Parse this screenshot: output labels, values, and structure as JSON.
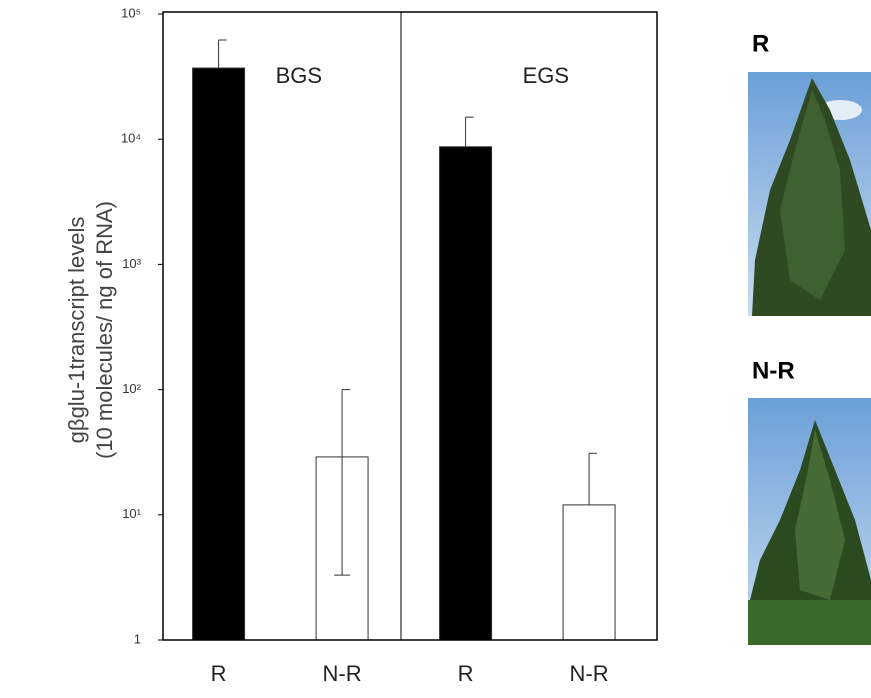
{
  "chart_data": {
    "type": "bar",
    "y_label_lines": [
      "gβglu-1transcript  levels",
      "(10 molecules/ ng of RNA)"
    ],
    "panels": [
      "BGS",
      "EGS"
    ],
    "categories": [
      "R",
      "N-R",
      "R",
      "N-R"
    ],
    "values": [
      37000,
      29,
      8700,
      12
    ],
    "error_high": [
      62000,
      100,
      15000,
      31
    ],
    "error_low": [
      null,
      3.3,
      null,
      null
    ],
    "colors": [
      "#000000",
      "#ffffff",
      "#000000",
      "#ffffff"
    ],
    "log_scale": true,
    "ylim": [
      1,
      100000
    ],
    "yticks": [
      1,
      {
        "value": 10,
        "label": "10¹"
      },
      {
        "value": 100,
        "label": "10²"
      },
      {
        "value": 1000,
        "label": "10³"
      },
      {
        "value": 10000,
        "label": "10⁴"
      },
      {
        "value": 100000,
        "label": "10⁵"
      }
    ],
    "photo_labels": [
      "R",
      "N-R"
    ]
  }
}
